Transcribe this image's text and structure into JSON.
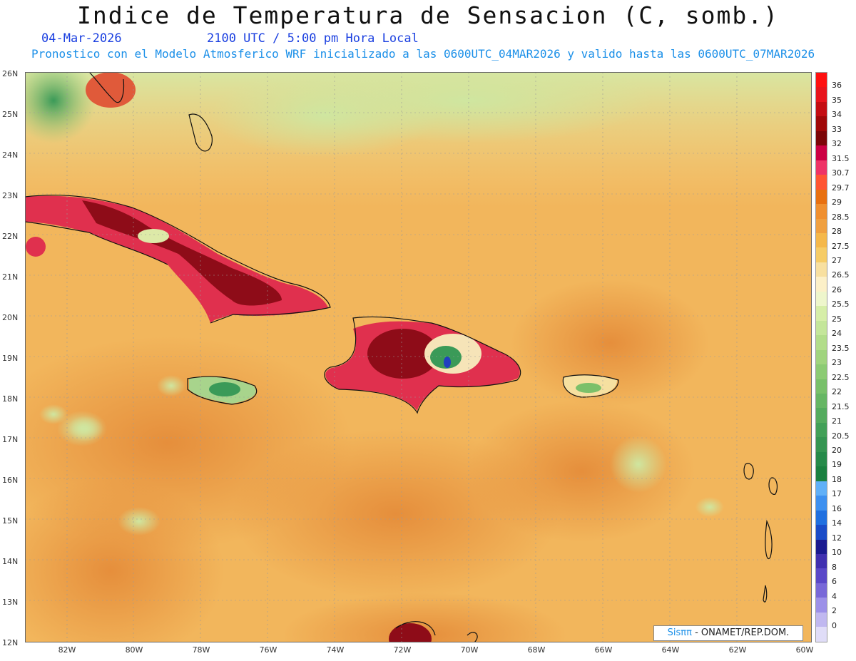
{
  "title": "Indice de Temperatura de Sensacion (C, somb.)",
  "subtitle": {
    "date": "04-Mar-2026",
    "time": "2100 UTC / 5:00 pm Hora Local",
    "model_info": "Pronostico con el Modelo Atmosferico WRF inicializado a las 0600UTC_04MAR2026 y valido hasta las  0600UTC_07MAR2026"
  },
  "lat_labels": [
    "26N",
    "25N",
    "24N",
    "23N",
    "22N",
    "21N",
    "20N",
    "19N",
    "18N",
    "17N",
    "16N",
    "15N",
    "14N",
    "13N",
    "12N"
  ],
  "lon_labels": [
    "82W",
    "80W",
    "78W",
    "76W",
    "74W",
    "72W",
    "70W",
    "68W",
    "66W",
    "64W",
    "62W",
    "60W"
  ],
  "colorbar": {
    "labels": [
      "36",
      "35",
      "34",
      "33",
      "32",
      "31.5",
      "30.7",
      "29.7",
      "29",
      "28.5",
      "28",
      "27.5",
      "27",
      "26.5",
      "26",
      "25.5",
      "25",
      "24",
      "23.5",
      "23",
      "22.5",
      "22",
      "21.5",
      "21",
      "20.5",
      "20",
      "19",
      "18",
      "17",
      "16",
      "14",
      "12",
      "10",
      "8",
      "6",
      "4",
      "2",
      "0"
    ],
    "colors": [
      "#ff1010",
      "#e8141c",
      "#c40d12",
      "#a00808",
      "#7c0508",
      "#cc0044",
      "#ee3366",
      "#ff5533",
      "#e87010",
      "#f09030",
      "#f0a040",
      "#f5b84a",
      "#f6cc66",
      "#f8e0a0",
      "#fcf0c8",
      "#eef6cc",
      "#d6eea8",
      "#c4e69a",
      "#b2dd8a",
      "#a0d47e",
      "#8ccb74",
      "#78c06a",
      "#66b664",
      "#54ab5e",
      "#42a058",
      "#359552",
      "#268a4a",
      "#1a8040",
      "#60b0f8",
      "#3d90f0",
      "#2070e0",
      "#1a4cc8",
      "#1a1a90",
      "#4030b0",
      "#5a48c8",
      "#7868d8",
      "#9c90e8",
      "#c0b8f0",
      "#e0ddf8"
    ]
  },
  "credit": {
    "brand": "Sisππ",
    "org": " -  ONAMET/REP.DOM."
  },
  "colors": {
    "sea_base": "#f2b45a",
    "sea_dark": "#ec9f44",
    "cool_north": "#dfeaa6",
    "land_hot": "#9e0d1a",
    "land_pink": "#e8205c"
  }
}
